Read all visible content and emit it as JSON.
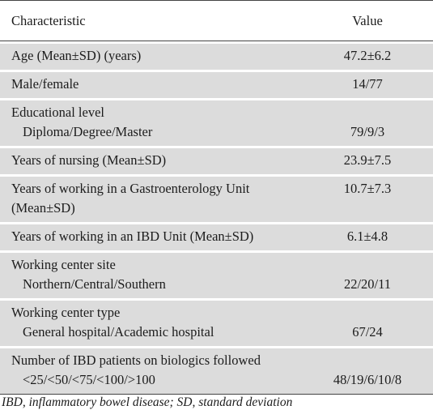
{
  "table": {
    "headers": {
      "characteristic": "Characteristic",
      "value": "Value"
    },
    "rows": [
      {
        "label": "Age (Mean±SD) (years)",
        "sub": "",
        "value": "47.2±6.2"
      },
      {
        "label": "Male/female",
        "sub": "",
        "value": "14/77"
      },
      {
        "label": "Educational level",
        "sub": "Diploma/Degree/Master",
        "value": "79/9/3"
      },
      {
        "label": "Years of nursing (Mean±SD)",
        "sub": "",
        "value": "23.9±7.5"
      },
      {
        "label": "Years of working in a Gastroenterology Unit (Mean±SD)",
        "sub": "",
        "value": "10.7±7.3"
      },
      {
        "label": "Years of working in an IBD Unit (Mean±SD)",
        "sub": "",
        "value": "6.1±4.8"
      },
      {
        "label": "Working center site",
        "sub": "Northern/Central/Southern",
        "value": "22/20/11"
      },
      {
        "label": "Working center type",
        "sub": "General hospital/Academic hospital",
        "value": "67/24"
      },
      {
        "label": "Number of IBD patients on biologics followed",
        "sub": "<25/<50/<75/<100/>100",
        "value": "48/19/6/10/8"
      }
    ]
  },
  "footnote": "IBD, inflammatory bowel disease; SD, standard deviation"
}
